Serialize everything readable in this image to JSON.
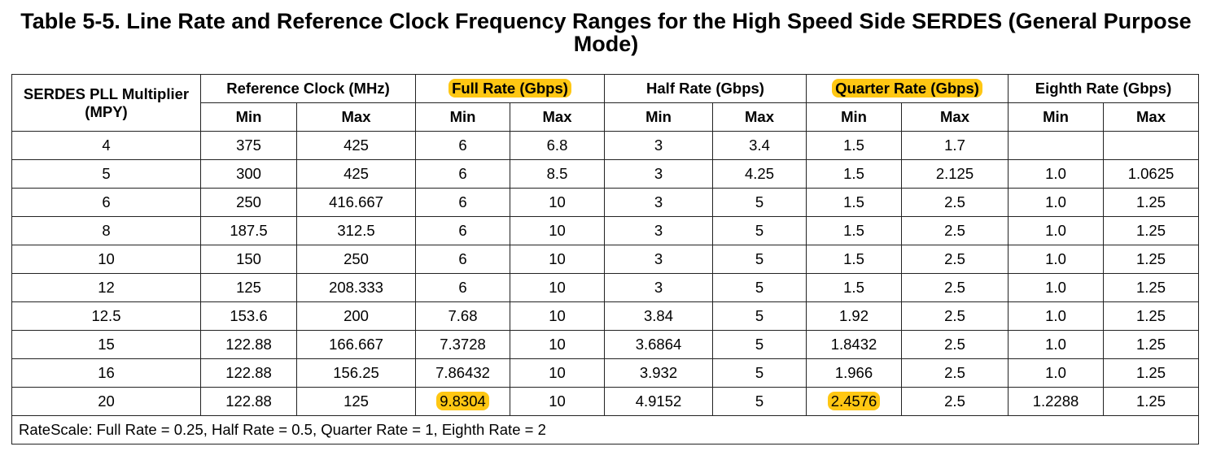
{
  "title": "Table 5-5. Line Rate and Reference Clock Frequency Ranges for the High Speed Side SERDES (General Purpose Mode)",
  "table": {
    "multiplier_header": "SERDES PLL Multiplier (MPY)",
    "groups": [
      "Reference Clock (MHz)",
      "Full Rate (Gbps)",
      "Half Rate (Gbps)",
      "Quarter Rate (Gbps)",
      "Eighth Rate (Gbps)"
    ],
    "subheaders": [
      "Min",
      "Max",
      "Min",
      "Max",
      "Min",
      "Max",
      "Min",
      "Max",
      "Min",
      "Max"
    ],
    "rows": [
      [
        "4",
        "375",
        "425",
        "6",
        "6.8",
        "3",
        "3.4",
        "1.5",
        "1.7",
        null,
        null
      ],
      [
        "5",
        "300",
        "425",
        "6",
        "8.5",
        "3",
        "4.25",
        "1.5",
        "2.125",
        "1.0",
        "1.0625"
      ],
      [
        "6",
        "250",
        "416.667",
        "6",
        "10",
        "3",
        "5",
        "1.5",
        "2.5",
        "1.0",
        "1.25"
      ],
      [
        "8",
        "187.5",
        "312.5",
        "6",
        "10",
        "3",
        "5",
        "1.5",
        "2.5",
        "1.0",
        "1.25"
      ],
      [
        "10",
        "150",
        "250",
        "6",
        "10",
        "3",
        "5",
        "1.5",
        "2.5",
        "1.0",
        "1.25"
      ],
      [
        "12",
        "125",
        "208.333",
        "6",
        "10",
        "3",
        "5",
        "1.5",
        "2.5",
        "1.0",
        "1.25"
      ],
      [
        "12.5",
        "153.6",
        "200",
        "7.68",
        "10",
        "3.84",
        "5",
        "1.92",
        "2.5",
        "1.0",
        "1.25"
      ],
      [
        "15",
        "122.88",
        "166.667",
        "7.3728",
        "10",
        "3.6864",
        "5",
        "1.8432",
        "2.5",
        "1.0",
        "1.25"
      ],
      [
        "16",
        "122.88",
        "156.25",
        "7.86432",
        "10",
        "3.932",
        "5",
        "1.966",
        "2.5",
        "1.0",
        "1.25"
      ],
      [
        "20",
        "122.88",
        "125",
        "9.8304",
        "10",
        "4.9152",
        "5",
        "2.4576",
        "2.5",
        "1.2288",
        "1.25"
      ]
    ],
    "footnote": "RateScale: Full Rate = 0.25, Half Rate = 0.5, Quarter Rate = 1, Eighth Rate = 2"
  }
}
